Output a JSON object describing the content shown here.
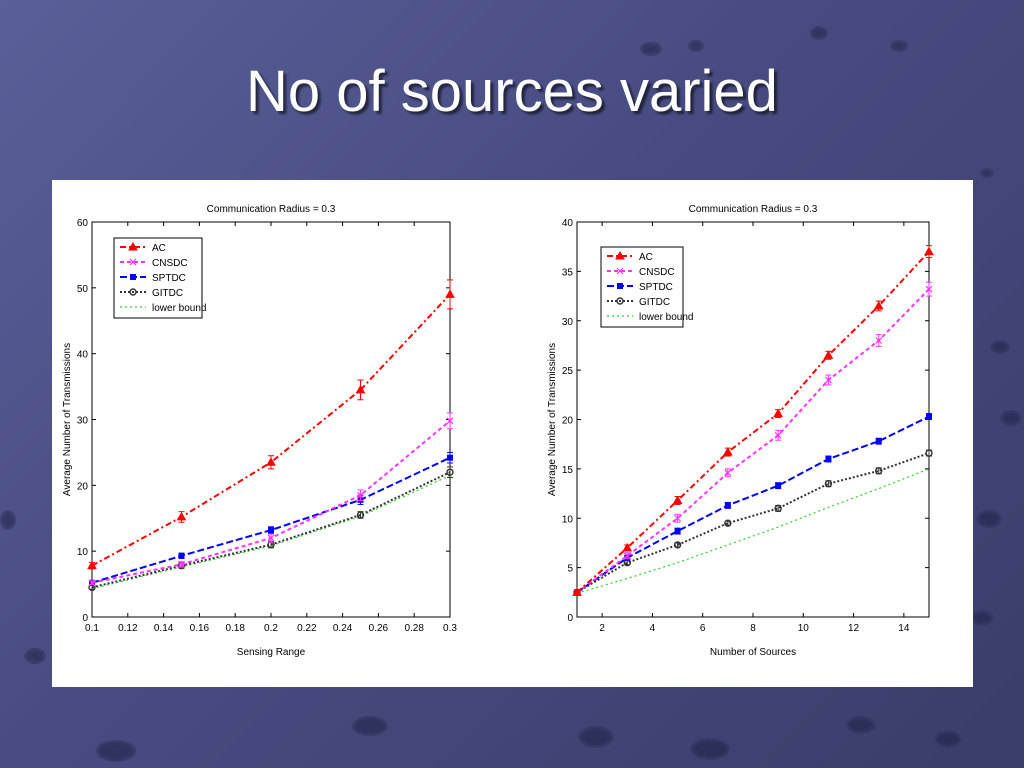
{
  "slide": {
    "title": "No of sources varied"
  },
  "chart_data": [
    {
      "type": "line",
      "title": "Communication Radius  = 0.3",
      "xlabel": "Sensing Range",
      "ylabel": "Average Number of Transmissions",
      "xlim": [
        0.1,
        0.3
      ],
      "ylim": [
        0,
        60
      ],
      "xticks": [
        0.1,
        0.12,
        0.14,
        0.16,
        0.18,
        0.2,
        0.22,
        0.24,
        0.26,
        0.28,
        0.3
      ],
      "xtick_labels": [
        "0.1",
        "0.12",
        "0.14",
        "0.16",
        "0.18",
        "0.2",
        "0.22",
        "0.24",
        "0.26",
        "0.28",
        "0.3"
      ],
      "yticks": [
        0,
        10,
        20,
        30,
        40,
        50,
        60
      ],
      "ytick_labels": [
        "0",
        "10",
        "20",
        "30",
        "40",
        "50",
        "60"
      ],
      "legend_position": "top-left",
      "grid": false,
      "series": [
        {
          "name": "AC",
          "color": "#ff0000",
          "dash": "6,3,2,3",
          "marker": "triangle",
          "x": [
            0.1,
            0.15,
            0.2,
            0.25,
            0.3
          ],
          "y": [
            7.8,
            15.2,
            23.5,
            34.5,
            49
          ],
          "err": [
            0.5,
            0.8,
            1.0,
            1.5,
            2.2
          ]
        },
        {
          "name": "CNSDC",
          "color": "#ff33ff",
          "dash": "4,3",
          "marker": "x",
          "x": [
            0.1,
            0.15,
            0.2,
            0.25,
            0.3
          ],
          "y": [
            5.2,
            8.0,
            12.0,
            18.5,
            29.8
          ],
          "err": [
            0.3,
            0.4,
            0.6,
            0.8,
            1.2
          ]
        },
        {
          "name": "SPTDC",
          "color": "#0000ff",
          "dash": "7,3",
          "marker": "square",
          "x": [
            0.1,
            0.15,
            0.2,
            0.25,
            0.3
          ],
          "y": [
            5.2,
            9.3,
            13.2,
            17.8,
            24.2
          ],
          "err": [
            0.3,
            0.4,
            0.5,
            0.7,
            0.8
          ]
        },
        {
          "name": "GITDC",
          "color": "#333333",
          "dash": "2,2",
          "marker": "circle",
          "x": [
            0.1,
            0.15,
            0.2,
            0.25,
            0.3
          ],
          "y": [
            4.5,
            7.8,
            11.0,
            15.5,
            22.0
          ],
          "err": [
            0.3,
            0.4,
            0.5,
            0.5,
            0.8
          ]
        },
        {
          "name": "lower bound",
          "color": "#33cc33",
          "dash": "2,3",
          "marker": "none",
          "x": [
            0.1,
            0.15,
            0.2,
            0.25,
            0.3
          ],
          "y": [
            4.3,
            7.6,
            10.8,
            15.3,
            21.5
          ],
          "err": []
        }
      ]
    },
    {
      "type": "line",
      "title": "Communication Radius  = 0.3",
      "xlabel": "Number of Sources",
      "ylabel": "Average Number of Transmissions",
      "xlim": [
        1,
        15
      ],
      "ylim": [
        0,
        40
      ],
      "xticks": [
        2,
        4,
        6,
        8,
        10,
        12,
        14
      ],
      "xtick_labels": [
        "2",
        "4",
        "6",
        "8",
        "10",
        "12",
        "14"
      ],
      "yticks": [
        0,
        5,
        10,
        15,
        20,
        25,
        30,
        35,
        40
      ],
      "ytick_labels": [
        "0",
        "5",
        "10",
        "15",
        "20",
        "25",
        "30",
        "35",
        "40"
      ],
      "legend_position": "top-left",
      "grid": false,
      "series": [
        {
          "name": "AC",
          "color": "#ff0000",
          "dash": "6,3,2,3",
          "marker": "triangle",
          "x": [
            1,
            3,
            5,
            7,
            9,
            11,
            13,
            15
          ],
          "y": [
            2.5,
            7.0,
            11.8,
            16.7,
            20.6,
            26.5,
            31.5,
            37.0
          ],
          "err": [
            0.2,
            0.3,
            0.4,
            0.4,
            0.4,
            0.4,
            0.5,
            0.6
          ]
        },
        {
          "name": "CNSDC",
          "color": "#ff33ff",
          "dash": "4,3",
          "marker": "x",
          "x": [
            1,
            3,
            5,
            7,
            9,
            11,
            13,
            15
          ],
          "y": [
            2.5,
            6.2,
            10.0,
            14.6,
            18.4,
            24.0,
            28.0,
            33.2
          ],
          "err": [
            0.2,
            0.3,
            0.4,
            0.4,
            0.5,
            0.5,
            0.6,
            0.7
          ]
        },
        {
          "name": "SPTDC",
          "color": "#0000ff",
          "dash": "7,3",
          "marker": "square",
          "x": [
            1,
            3,
            5,
            7,
            9,
            11,
            13,
            15
          ],
          "y": [
            2.5,
            6.0,
            8.7,
            11.3,
            13.3,
            16.0,
            17.8,
            20.3
          ],
          "err": [
            0.2,
            0.2,
            0.3,
            0.3,
            0.3,
            0.3,
            0.3,
            0.3
          ]
        },
        {
          "name": "GITDC",
          "color": "#333333",
          "dash": "2,2",
          "marker": "circle",
          "x": [
            1,
            3,
            5,
            7,
            9,
            11,
            13,
            15
          ],
          "y": [
            2.5,
            5.5,
            7.3,
            9.5,
            11.0,
            13.5,
            14.8,
            16.6
          ],
          "err": [
            0.2,
            0.2,
            0.2,
            0.2,
            0.3,
            0.3,
            0.3,
            0.3
          ]
        },
        {
          "name": "lower bound",
          "color": "#33cc33",
          "dash": "2,3",
          "marker": "none",
          "x": [
            1,
            3,
            5,
            7,
            9,
            11,
            13,
            15
          ],
          "y": [
            2.4,
            3.9,
            5.5,
            7.3,
            9.1,
            11.1,
            13.0,
            15.0
          ],
          "err": []
        }
      ]
    }
  ]
}
